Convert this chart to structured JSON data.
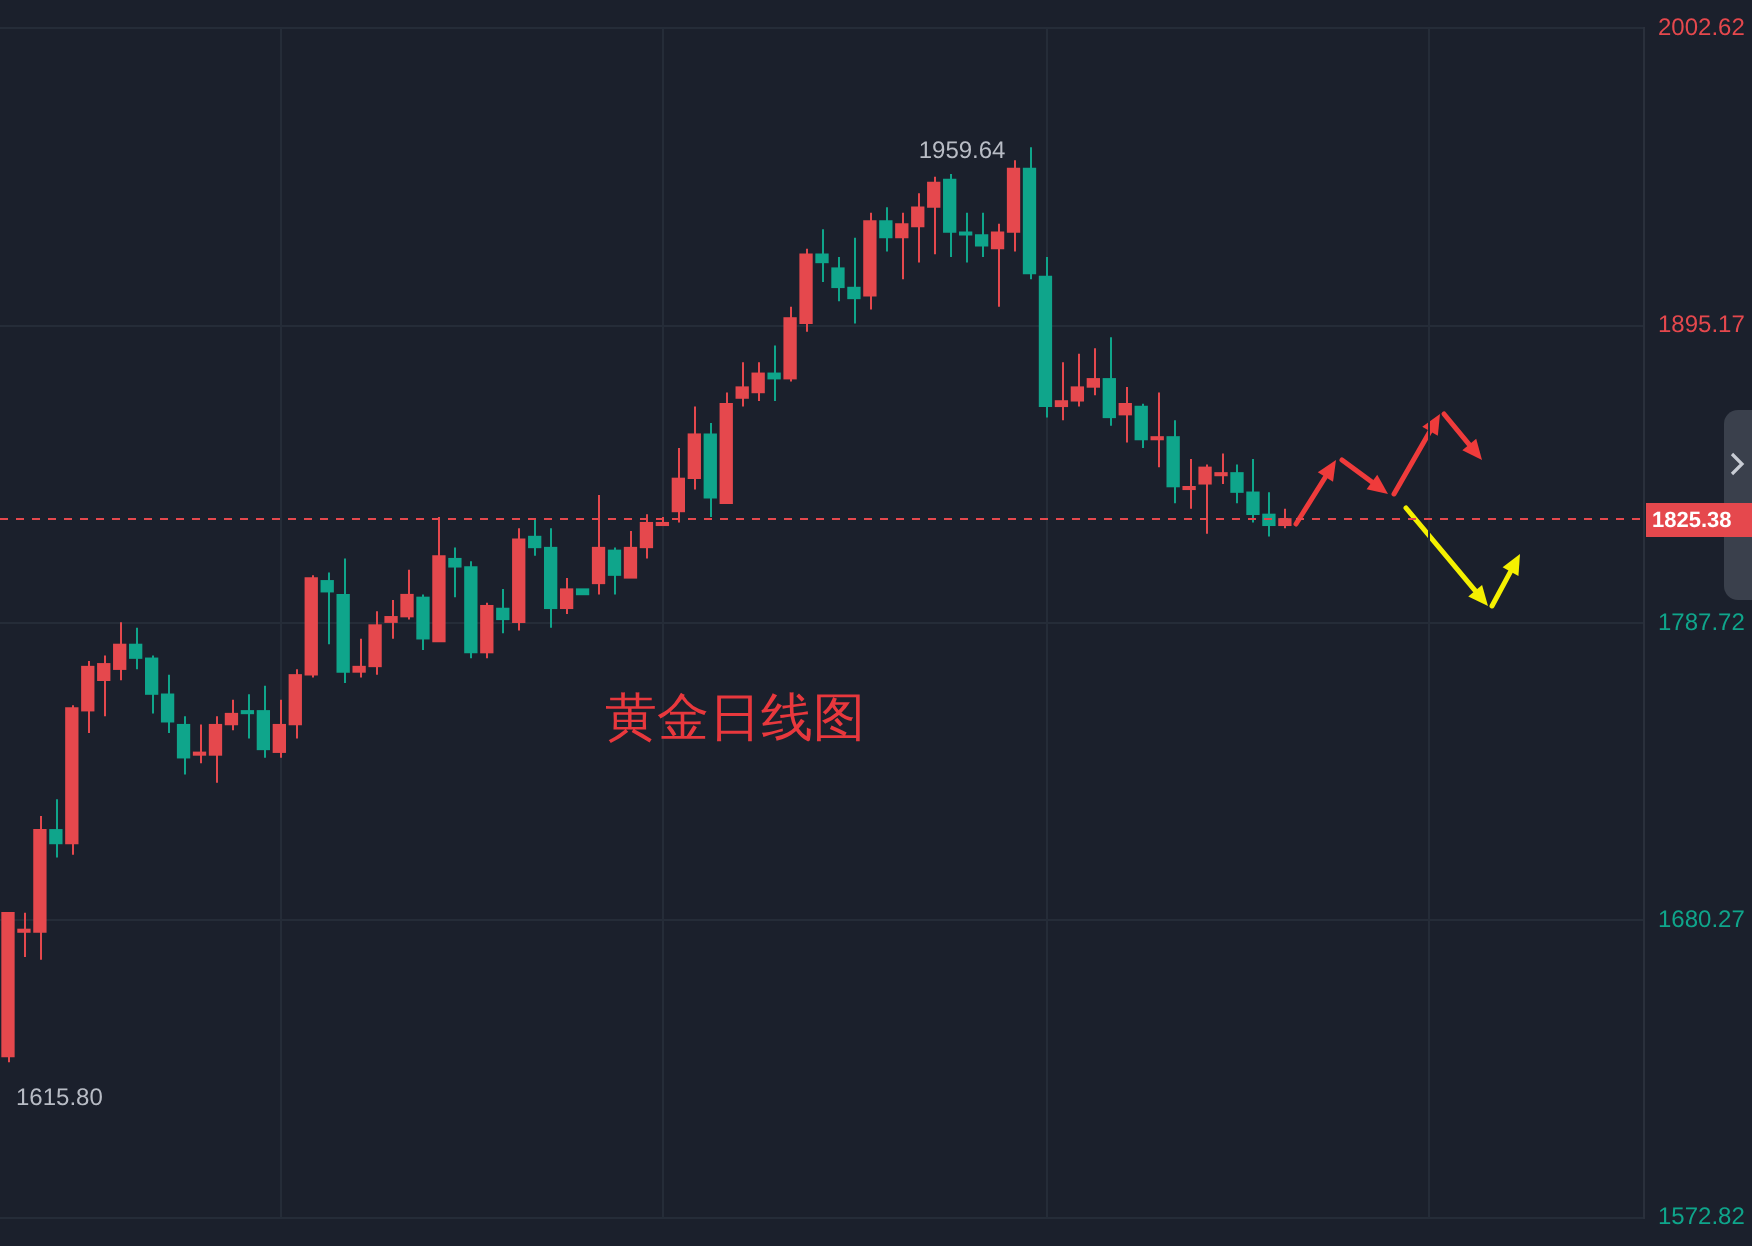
{
  "chart_data": {
    "type": "candlestick",
    "categories": [
      null,
      null,
      null,
      null,
      null,
      null,
      null,
      null,
      null,
      null,
      null,
      null,
      null,
      null,
      null,
      null,
      null,
      null,
      null,
      null,
      null,
      null,
      null,
      null,
      null,
      null,
      null,
      null,
      null,
      null,
      null,
      null,
      null,
      null,
      null,
      null,
      null,
      null,
      null,
      null,
      null,
      null,
      null,
      null,
      null,
      null,
      null,
      null,
      null,
      null,
      null,
      null,
      null,
      null,
      null,
      null,
      null,
      null,
      null,
      null,
      null,
      null,
      null,
      null,
      null,
      null,
      null,
      null,
      null,
      null,
      null,
      null,
      null,
      null,
      null,
      null,
      null,
      null,
      null,
      null,
      null,
      null,
      null,
      null,
      null,
      null,
      null,
      null,
      null,
      null,
      null,
      null,
      null,
      null,
      null,
      null,
      null,
      null,
      null,
      null,
      null,
      null,
      null
    ],
    "ohlc": [
      [
        1631,
        1683,
        1629,
        1683
      ],
      [
        1676,
        1683,
        1667,
        1677
      ],
      [
        1676,
        1718,
        1666,
        1713
      ],
      [
        1713,
        1724,
        1703,
        1708
      ],
      [
        1708,
        1758,
        1704,
        1757
      ],
      [
        1756,
        1774,
        1748,
        1772
      ],
      [
        1767,
        1776,
        1754,
        1773
      ],
      [
        1771,
        1788,
        1767,
        1780
      ],
      [
        1780,
        1786,
        1771,
        1775
      ],
      [
        1775,
        1776,
        1755,
        1762
      ],
      [
        1762,
        1769,
        1748,
        1752
      ],
      [
        1751,
        1754,
        1733,
        1739
      ],
      [
        1740,
        1751,
        1737,
        1741
      ],
      [
        1740,
        1754,
        1730,
        1751
      ],
      [
        1751,
        1760,
        1749,
        1755
      ],
      [
        1756,
        1762,
        1746,
        1755
      ],
      [
        1756,
        1765,
        1739,
        1742
      ],
      [
        1741,
        1760,
        1739,
        1751
      ],
      [
        1751,
        1771,
        1746,
        1769
      ],
      [
        1769,
        1805,
        1768,
        1804
      ],
      [
        1803,
        1806,
        1780,
        1799
      ],
      [
        1798,
        1811,
        1766,
        1770
      ],
      [
        1770,
        1782,
        1768,
        1772
      ],
      [
        1772,
        1792,
        1769,
        1787
      ],
      [
        1788,
        1796,
        1782,
        1790
      ],
      [
        1790,
        1807,
        1789,
        1798
      ],
      [
        1797,
        1798,
        1778,
        1782
      ],
      [
        1781,
        1826,
        1781,
        1812
      ],
      [
        1811,
        1815,
        1797,
        1808
      ],
      [
        1808,
        1810,
        1775,
        1777
      ],
      [
        1777,
        1795,
        1775,
        1794
      ],
      [
        1793,
        1800,
        1784,
        1789
      ],
      [
        1788,
        1822,
        1785,
        1818
      ],
      [
        1819,
        1825,
        1812,
        1815
      ],
      [
        1815,
        1822,
        1786,
        1793
      ],
      [
        1793,
        1804,
        1791,
        1800
      ],
      [
        1800,
        1800,
        1798,
        1798
      ],
      [
        1802,
        1834,
        1798,
        1815
      ],
      [
        1814,
        1815,
        1798,
        1805
      ],
      [
        1804,
        1821,
        1804,
        1815
      ],
      [
        1815,
        1827,
        1811,
        1824
      ],
      [
        1823,
        1826,
        1823,
        1824
      ],
      [
        1828,
        1851,
        1824,
        1840
      ],
      [
        1840,
        1866,
        1836,
        1856
      ],
      [
        1856,
        1860,
        1826,
        1833
      ],
      [
        1831,
        1871,
        1831,
        1867
      ],
      [
        1869,
        1882,
        1866,
        1873
      ],
      [
        1871,
        1882,
        1868,
        1878
      ],
      [
        1878,
        1888,
        1868,
        1876
      ],
      [
        1876,
        1902,
        1875,
        1898
      ],
      [
        1896,
        1923,
        1893,
        1921
      ],
      [
        1921,
        1930,
        1911,
        1918
      ],
      [
        1916,
        1920,
        1904,
        1909
      ],
      [
        1909,
        1927,
        1896,
        1905
      ],
      [
        1906,
        1936,
        1901,
        1933
      ],
      [
        1933,
        1938,
        1922,
        1927
      ],
      [
        1927,
        1936,
        1912,
        1932
      ],
      [
        1931,
        1943,
        1918,
        1938
      ],
      [
        1938,
        1949,
        1921,
        1947
      ],
      [
        1948,
        1950,
        1920,
        1929
      ],
      [
        1929,
        1936,
        1918,
        1928
      ],
      [
        1928,
        1936,
        1920,
        1924
      ],
      [
        1923,
        1932,
        1902,
        1929
      ],
      [
        1929,
        1955,
        1922,
        1952
      ],
      [
        1952,
        1959.64,
        1912,
        1914
      ],
      [
        1913,
        1920,
        1862,
        1866
      ],
      [
        1866,
        1882,
        1861,
        1868
      ],
      [
        1868,
        1885,
        1866,
        1873
      ],
      [
        1873,
        1887,
        1870,
        1876
      ],
      [
        1876,
        1891,
        1859,
        1862
      ],
      [
        1863,
        1873,
        1853,
        1867
      ],
      [
        1866,
        1867,
        1851,
        1854
      ],
      [
        1854,
        1871,
        1844,
        1855
      ],
      [
        1855,
        1861,
        1831,
        1837
      ],
      [
        1836,
        1847,
        1829,
        1837
      ],
      [
        1838,
        1845,
        1820,
        1844
      ],
      [
        1841,
        1849,
        1838,
        1842
      ],
      [
        1842,
        1845,
        1831,
        1835
      ],
      [
        1835,
        1847,
        1824,
        1827
      ],
      [
        1827,
        1835,
        1819,
        1823
      ],
      [
        1823,
        1829,
        1822,
        1825.38
      ],
      null,
      null,
      null,
      null,
      null,
      null,
      null,
      null,
      null,
      null,
      null,
      null,
      null,
      null,
      null,
      null,
      null,
      null,
      null,
      null,
      null,
      null
    ],
    "ylim": [
      1572.82,
      2002.62
    ],
    "yticks": [
      1572.82,
      1680.27,
      1787.72,
      1895.17,
      2002.62
    ],
    "tick_labels": "y",
    "grid": true,
    "ref_lines": [
      {
        "axis": "y",
        "value": 1825.38,
        "label": "1825.38",
        "color": "#e5484d",
        "line_style": "dashed"
      }
    ],
    "annotations": [
      "黄金日线图",
      "1959.64",
      "1615.80"
    ]
  }
}
